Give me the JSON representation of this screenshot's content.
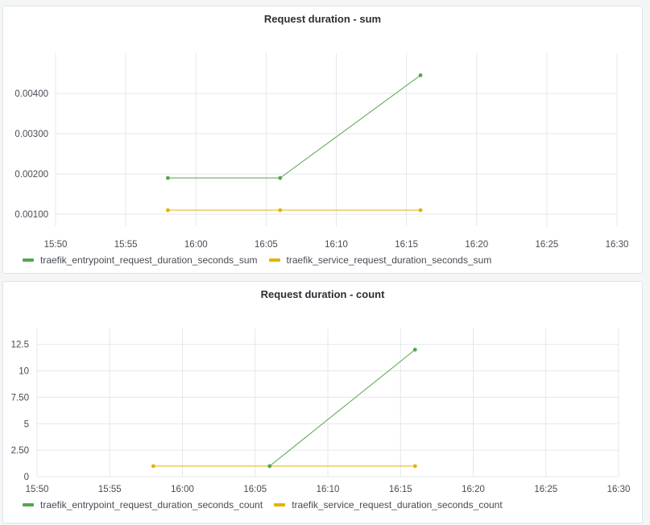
{
  "colors": {
    "entrypoint": "#56a64b",
    "service": "#e0b400"
  },
  "chart_data": [
    {
      "type": "line",
      "title": "Request duration - sum",
      "xlabel": "",
      "ylabel": "",
      "x_ticks": [
        "15:50",
        "15:55",
        "16:00",
        "16:05",
        "16:10",
        "16:15",
        "16:20",
        "16:25",
        "16:30"
      ],
      "xlim": [
        "15:50",
        "16:30"
      ],
      "y_ticks": [
        "0.00100",
        "0.00200",
        "0.00300",
        "0.00400"
      ],
      "ylim": [
        0.0007,
        0.005
      ],
      "grid": true,
      "legend": "bottom-left",
      "series": [
        {
          "name": "traefik_entrypoint_request_duration_seconds_sum",
          "color_key": "entrypoint",
          "points": [
            [
              "15:58",
              0.0019
            ],
            [
              "16:06",
              0.0019
            ],
            [
              "16:16",
              0.00445
            ]
          ]
        },
        {
          "name": "traefik_service_request_duration_seconds_sum",
          "color_key": "service",
          "points": [
            [
              "15:58",
              0.0011
            ],
            [
              "16:06",
              0.0011
            ],
            [
              "16:16",
              0.0011
            ]
          ]
        }
      ]
    },
    {
      "type": "line",
      "title": "Request duration - count",
      "xlabel": "",
      "ylabel": "",
      "x_ticks": [
        "15:50",
        "15:55",
        "16:00",
        "16:05",
        "16:10",
        "16:15",
        "16:20",
        "16:25",
        "16:30"
      ],
      "xlim": [
        "15:50",
        "16:30"
      ],
      "y_ticks": [
        "0",
        "2.50",
        "5",
        "7.50",
        "10",
        "12.5"
      ],
      "ylim": [
        0,
        14
      ],
      "grid": true,
      "legend": "bottom-left",
      "series": [
        {
          "name": "traefik_entrypoint_request_duration_seconds_count",
          "color_key": "entrypoint",
          "points": [
            [
              "16:06",
              1
            ],
            [
              "16:16",
              12
            ]
          ]
        },
        {
          "name": "traefik_service_request_duration_seconds_count",
          "color_key": "service",
          "points": [
            [
              "15:58",
              1
            ],
            [
              "16:06",
              1
            ],
            [
              "16:16",
              1
            ]
          ]
        }
      ]
    }
  ]
}
